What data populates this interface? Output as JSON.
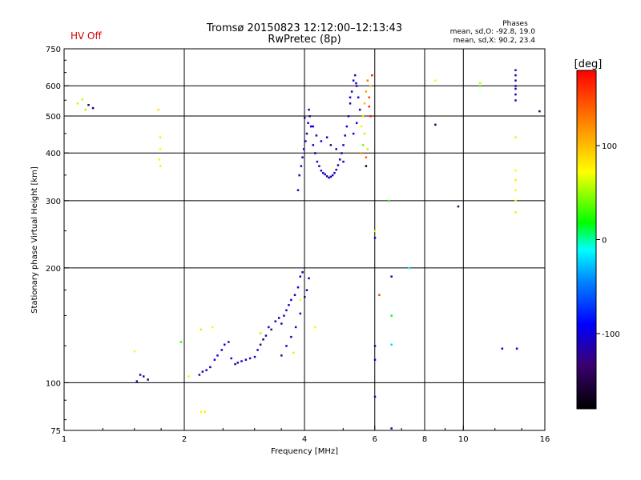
{
  "header": {
    "title": "Tromsø 20150823 12:12:00–12:13:43",
    "subtitle": "RwPretec (8p)",
    "status": "HV Off",
    "status_color": "#cc0000",
    "phases_label": "Phases",
    "phases_o": "mean, sd,O: -92.8, 19.0",
    "phases_x": "mean, sd,X:  90.2, 23.4"
  },
  "chart_data": {
    "type": "scatter",
    "xlabel": "Frequency [MHz]",
    "ylabel": "Stationary phase Virtual Height [km]",
    "x_scale": "log",
    "y_scale": "log",
    "xlim": [
      1,
      16
    ],
    "ylim": [
      75,
      750
    ],
    "x_ticks": [
      1,
      2,
      4,
      6,
      8,
      10,
      16
    ],
    "x_tick_labels": [
      "1",
      "2",
      "4",
      "6",
      "8",
      "10",
      "16"
    ],
    "y_ticks": [
      75,
      100,
      200,
      300,
      400,
      500,
      600,
      750
    ],
    "y_tick_labels": [
      "75",
      "100",
      "200",
      "300",
      "400",
      "500",
      "600",
      "750"
    ],
    "x_grid": [
      2,
      4,
      6,
      8,
      10
    ],
    "y_grid": [
      100,
      200,
      300,
      400,
      500,
      600
    ],
    "colorbar": {
      "label": "[deg]",
      "range": [
        -180,
        180
      ],
      "ticks": [
        100,
        0,
        -100
      ],
      "tick_labels": [
        "100",
        "0",
        "-100"
      ]
    },
    "points": [
      [
        1.08,
        540,
        60
      ],
      [
        1.11,
        553,
        62
      ],
      [
        1.13,
        520,
        55
      ],
      [
        1.15,
        535,
        -140
      ],
      [
        1.18,
        525,
        -150
      ],
      [
        1.52,
        101,
        -120
      ],
      [
        1.55,
        105,
        -110
      ],
      [
        1.58,
        104,
        -130
      ],
      [
        1.62,
        102,
        -140
      ],
      [
        1.5,
        121,
        70
      ],
      [
        1.72,
        520,
        85
      ],
      [
        1.74,
        440,
        80
      ],
      [
        1.74,
        410,
        70
      ],
      [
        1.73,
        385,
        75
      ],
      [
        1.74,
        370,
        80
      ],
      [
        1.96,
        128,
        30
      ],
      [
        2.05,
        104,
        65
      ],
      [
        2.2,
        84,
        75
      ],
      [
        2.25,
        84,
        80
      ],
      [
        2.2,
        138,
        60
      ],
      [
        2.35,
        140,
        70
      ],
      [
        2.18,
        105,
        -110
      ],
      [
        2.22,
        107,
        -120
      ],
      [
        2.27,
        108,
        -100
      ],
      [
        2.32,
        110,
        -115
      ],
      [
        2.38,
        115,
        -90
      ],
      [
        2.42,
        118,
        -100
      ],
      [
        2.48,
        122,
        -105
      ],
      [
        2.52,
        126,
        -95
      ],
      [
        2.58,
        128,
        -110
      ],
      [
        2.62,
        116,
        -100
      ],
      [
        2.68,
        112,
        -115
      ],
      [
        2.72,
        113,
        -120
      ],
      [
        2.78,
        114,
        -110
      ],
      [
        2.85,
        115,
        -105
      ],
      [
        2.92,
        116,
        -115
      ],
      [
        3.0,
        117,
        -120
      ],
      [
        3.05,
        122,
        -110
      ],
      [
        3.1,
        126,
        -130
      ],
      [
        3.15,
        130,
        -150
      ],
      [
        3.2,
        133,
        -120
      ],
      [
        3.25,
        140,
        -100
      ],
      [
        3.3,
        138,
        -130
      ],
      [
        3.38,
        145,
        -110
      ],
      [
        3.45,
        148,
        -120
      ],
      [
        3.5,
        143,
        -115
      ],
      [
        3.55,
        150,
        -100
      ],
      [
        3.6,
        155,
        -120
      ],
      [
        3.65,
        160,
        -105
      ],
      [
        3.7,
        165,
        -110
      ],
      [
        3.78,
        170,
        -95
      ],
      [
        3.85,
        178,
        -100
      ],
      [
        3.9,
        190,
        -110
      ],
      [
        3.95,
        195,
        -120
      ],
      [
        3.5,
        118,
        -115
      ],
      [
        3.6,
        125,
        -100
      ],
      [
        3.7,
        132,
        -110
      ],
      [
        3.8,
        140,
        -105
      ],
      [
        3.9,
        152,
        -115
      ],
      [
        4.0,
        168,
        -110
      ],
      [
        4.05,
        175,
        -120
      ],
      [
        4.1,
        188,
        -100
      ],
      [
        3.75,
        120,
        60
      ],
      [
        3.9,
        165,
        70
      ],
      [
        4.25,
        140,
        75
      ],
      [
        3.1,
        135,
        55
      ],
      [
        3.85,
        320,
        -110
      ],
      [
        3.88,
        350,
        -120
      ],
      [
        3.92,
        370,
        -105
      ],
      [
        3.95,
        390,
        -115
      ],
      [
        3.98,
        410,
        -100
      ],
      [
        4.02,
        430,
        -110
      ],
      [
        4.05,
        450,
        -120
      ],
      [
        4.08,
        480,
        -105
      ],
      [
        4.12,
        500,
        -110
      ],
      [
        4.15,
        470,
        -95
      ],
      [
        4.2,
        420,
        -110
      ],
      [
        4.25,
        400,
        -115
      ],
      [
        4.3,
        380,
        -100
      ],
      [
        4.35,
        370,
        -110
      ],
      [
        4.4,
        360,
        -120
      ],
      [
        4.45,
        355,
        -105
      ],
      [
        4.5,
        352,
        -110
      ],
      [
        4.55,
        348,
        -115
      ],
      [
        4.6,
        345,
        -120
      ],
      [
        4.65,
        347,
        -100
      ],
      [
        4.7,
        350,
        -110
      ],
      [
        4.75,
        355,
        -115
      ],
      [
        4.8,
        362,
        -105
      ],
      [
        4.85,
        372,
        -110
      ],
      [
        4.9,
        385,
        -120
      ],
      [
        4.95,
        400,
        -110
      ],
      [
        5.0,
        420,
        -105
      ],
      [
        5.05,
        445,
        -115
      ],
      [
        5.1,
        470,
        -100
      ],
      [
        5.15,
        500,
        -110
      ],
      [
        5.2,
        540,
        -120
      ],
      [
        5.25,
        580,
        -110
      ],
      [
        5.3,
        620,
        -105
      ],
      [
        5.35,
        640,
        -115
      ],
      [
        5.38,
        610,
        -100
      ],
      [
        4.0,
        495,
        -110
      ],
      [
        4.1,
        520,
        -120
      ],
      [
        4.2,
        470,
        -105
      ],
      [
        4.28,
        445,
        -115
      ],
      [
        4.4,
        430,
        -100
      ],
      [
        4.55,
        440,
        -110
      ],
      [
        4.65,
        420,
        -120
      ],
      [
        4.8,
        410,
        -115
      ],
      [
        5.0,
        380,
        -110
      ],
      [
        5.2,
        560,
        -100
      ],
      [
        5.4,
        600,
        -120
      ],
      [
        5.45,
        560,
        -110
      ],
      [
        5.5,
        520,
        -115
      ],
      [
        5.4,
        480,
        -105
      ],
      [
        5.3,
        450,
        -110
      ],
      [
        5.55,
        470,
        80
      ],
      [
        5.6,
        500,
        90
      ],
      [
        5.65,
        540,
        100
      ],
      [
        5.7,
        580,
        110
      ],
      [
        5.75,
        620,
        130
      ],
      [
        5.8,
        560,
        150
      ],
      [
        5.85,
        500,
        170
      ],
      [
        5.65,
        450,
        60
      ],
      [
        5.6,
        420,
        40
      ],
      [
        5.55,
        400,
        120
      ],
      [
        5.7,
        390,
        140
      ],
      [
        5.75,
        410,
        90
      ],
      [
        5.8,
        530,
        160
      ],
      [
        5.85,
        600,
        100
      ],
      [
        5.9,
        640,
        170
      ],
      [
        5.7,
        370,
        -170
      ],
      [
        6.0,
        250,
        80
      ],
      [
        6.0,
        240,
        -110
      ],
      [
        6.0,
        125,
        -120
      ],
      [
        6.0,
        115,
        -100
      ],
      [
        6.0,
        92,
        -110
      ],
      [
        6.15,
        170,
        150
      ],
      [
        6.5,
        300,
        30
      ],
      [
        6.6,
        190,
        -110
      ],
      [
        6.6,
        150,
        20
      ],
      [
        6.6,
        126,
        -20
      ],
      [
        6.6,
        76,
        -120
      ],
      [
        7.3,
        200,
        -10
      ],
      [
        8.5,
        620,
        70
      ],
      [
        8.5,
        475,
        -150
      ],
      [
        9.7,
        290,
        -140
      ],
      [
        11.0,
        610,
        60
      ],
      [
        11.0,
        600,
        30
      ],
      [
        12.5,
        123,
        -100
      ],
      [
        13.5,
        660,
        -120
      ],
      [
        13.5,
        640,
        -110
      ],
      [
        13.5,
        620,
        -130
      ],
      [
        13.5,
        600,
        -100
      ],
      [
        13.5,
        590,
        -120
      ],
      [
        13.5,
        570,
        -110
      ],
      [
        13.5,
        550,
        -105
      ],
      [
        13.5,
        440,
        80
      ],
      [
        13.5,
        360,
        70
      ],
      [
        13.5,
        340,
        80
      ],
      [
        13.5,
        320,
        75
      ],
      [
        13.5,
        300,
        70
      ],
      [
        13.5,
        280,
        80
      ],
      [
        13.6,
        123,
        -100
      ],
      [
        15.5,
        515,
        -150
      ]
    ]
  }
}
